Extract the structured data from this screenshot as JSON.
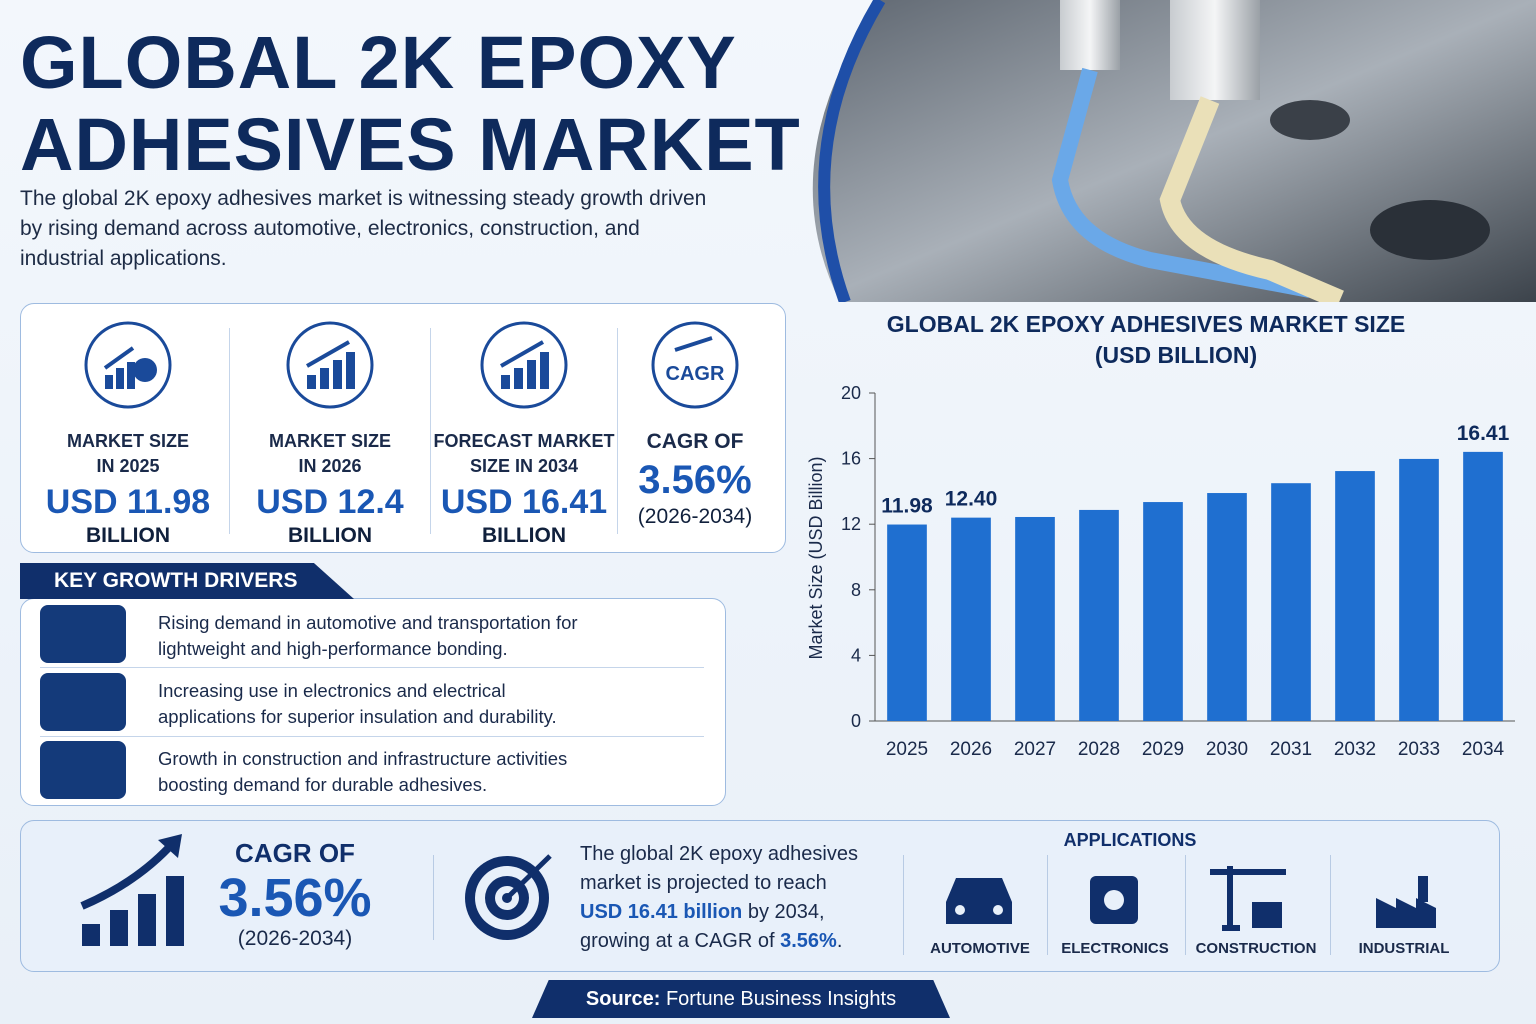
{
  "header": {
    "title_line1": "GLOBAL 2K EPOXY",
    "title_line2": "ADHESIVES MARKET",
    "description": "The global 2K epoxy adhesives market is witnessing steady growth driven by rising demand across automotive, electronics, construction, and industrial applications."
  },
  "stats": [
    {
      "label_line1": "MARKET SIZE",
      "label_line2": "IN 2025",
      "value": "USD 11.98",
      "unit": "BILLION"
    },
    {
      "label_line1": "MARKET SIZE",
      "label_line2": "IN 2026",
      "value": "USD 12.4",
      "unit": "BILLION"
    },
    {
      "label_line1": "FORECAST MARKET",
      "label_line2": "SIZE IN 2034",
      "value": "USD 16.41",
      "unit": "BILLION"
    },
    {
      "icon_text": "CAGR",
      "label_line1": "CAGR OF",
      "value": "3.56%",
      "unit": "(2026-2034)"
    }
  ],
  "drivers": {
    "title": "KEY GROWTH DRIVERS",
    "items": [
      "Rising demand in automotive and transportation for lightweight and high-performance bonding.",
      "Increasing use in electronics and electrical applications for superior insulation and durability.",
      "Growth in construction and infrastructure activities boosting demand for durable adhesives."
    ]
  },
  "chart_data": {
    "type": "bar",
    "title": "GLOBAL 2K EPOXY ADHESIVES MARKET SIZE",
    "subtitle": "(USD BILLION)",
    "y_label": "Market Size (USD Billion)",
    "categories": [
      "2025",
      "2026",
      "2027",
      "2028",
      "2029",
      "2030",
      "2031",
      "2032",
      "2033",
      "2034"
    ],
    "values": [
      11.98,
      12.4,
      12.44,
      12.87,
      13.35,
      13.9,
      14.5,
      15.24,
      15.98,
      16.41
    ],
    "value_labels": [
      "11.98",
      "12.40",
      null,
      null,
      null,
      null,
      null,
      null,
      null,
      "16.41"
    ],
    "color": "#1f6fd0",
    "ylim": [
      0,
      20
    ],
    "yticks": [
      0,
      4,
      8,
      12,
      16,
      20
    ],
    "grid": false
  },
  "summary": {
    "cagr_title": "CAGR OF",
    "cagr_value": "3.56%",
    "cagr_period": "(2026-2034)",
    "text_parts": [
      "The global 2K epoxy adhesives market is projected to reach ",
      "USD 16.41 billion",
      " by 2034, growing at a CAGR of ",
      "3.56%",
      "."
    ]
  },
  "applications": {
    "title": "APPLICATIONS",
    "items": [
      "AUTOMOTIVE",
      "ELECTRONICS",
      "CONSTRUCTION",
      "INDUSTRIAL"
    ]
  },
  "source": {
    "label": "Source:",
    "text": "Fortune Business Insights"
  }
}
